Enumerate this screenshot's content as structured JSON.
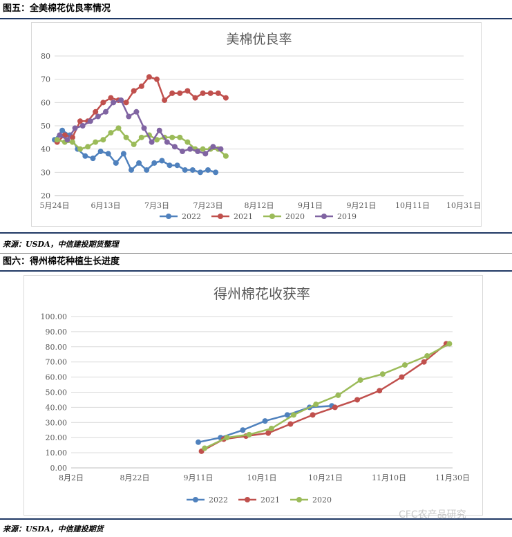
{
  "figure5": {
    "label": "图五：全美棉花优良率情况",
    "source": "来源：USDA，中信建投期货整理"
  },
  "figure6": {
    "label": "图六：得州棉花种植生长进度",
    "source": "来源：USDA，中信建投期货"
  },
  "watermark": "CFC农产品研究",
  "chart_data": [
    {
      "type": "line",
      "title": "美棉优良率",
      "xlabel": "",
      "ylabel": "",
      "x_tick_labels": [
        "5月24日",
        "6月13日",
        "7月3日",
        "7月23日",
        "8月12日",
        "9月1日",
        "9月21日",
        "10月11日",
        "10月31日"
      ],
      "ylim": [
        20,
        80
      ],
      "y_ticks": [
        20,
        30,
        40,
        50,
        60,
        70,
        80
      ],
      "grid": true,
      "legend_position": "bottom",
      "series": [
        {
          "name": "2022",
          "color": "#4f81bd",
          "points": [
            [
              0,
              44
            ],
            [
              3,
              48
            ],
            [
              6,
              46
            ],
            [
              9,
              40
            ],
            [
              12,
              37
            ],
            [
              15,
              36
            ],
            [
              18,
              39
            ],
            [
              21,
              38
            ],
            [
              24,
              34
            ],
            [
              27,
              38
            ],
            [
              30,
              31
            ],
            [
              33,
              34
            ],
            [
              36,
              31
            ],
            [
              39,
              34
            ],
            [
              42,
              35
            ],
            [
              45,
              33
            ],
            [
              48,
              33
            ],
            [
              51,
              31
            ],
            [
              54,
              31
            ],
            [
              57,
              30
            ],
            [
              60,
              31
            ],
            [
              63,
              30
            ]
          ]
        },
        {
          "name": "2021",
          "color": "#c0504d",
          "points": [
            [
              1,
              43
            ],
            [
              4,
              46
            ],
            [
              7,
              45
            ],
            [
              10,
              52
            ],
            [
              13,
              52
            ],
            [
              16,
              56
            ],
            [
              19,
              60
            ],
            [
              22,
              62
            ],
            [
              25,
              61
            ],
            [
              28,
              60
            ],
            [
              31,
              65
            ],
            [
              34,
              67
            ],
            [
              37,
              71
            ],
            [
              40,
              70
            ],
            [
              43,
              61
            ],
            [
              46,
              64
            ],
            [
              49,
              64
            ],
            [
              52,
              65
            ],
            [
              55,
              62
            ],
            [
              58,
              64
            ],
            [
              61,
              64
            ],
            [
              64,
              64
            ],
            [
              67,
              62
            ]
          ]
        },
        {
          "name": "2020",
          "color": "#9bbb59",
          "points": [
            [
              1,
              44
            ],
            [
              4,
              43
            ],
            [
              7,
              43
            ],
            [
              10,
              40
            ],
            [
              13,
              41
            ],
            [
              16,
              43
            ],
            [
              19,
              44
            ],
            [
              22,
              47
            ],
            [
              25,
              49
            ],
            [
              28,
              45
            ],
            [
              31,
              42
            ],
            [
              34,
              45
            ],
            [
              37,
              46
            ],
            [
              40,
              44
            ],
            [
              43,
              45
            ],
            [
              46,
              45
            ],
            [
              49,
              45
            ],
            [
              52,
              43
            ],
            [
              55,
              40
            ],
            [
              58,
              40
            ],
            [
              61,
              40
            ],
            [
              64,
              40
            ],
            [
              67,
              37
            ]
          ]
        },
        {
          "name": "2019",
          "color": "#8064a2",
          "points": [
            [
              2,
              46
            ],
            [
              5,
              44
            ],
            [
              8,
              49
            ],
            [
              11,
              50
            ],
            [
              14,
              52
            ],
            [
              17,
              54
            ],
            [
              20,
              56
            ],
            [
              23,
              60
            ],
            [
              26,
              61
            ],
            [
              29,
              54
            ],
            [
              32,
              56
            ],
            [
              35,
              49
            ],
            [
              38,
              43
            ],
            [
              41,
              48
            ],
            [
              44,
              43
            ],
            [
              47,
              41
            ],
            [
              50,
              39
            ],
            [
              53,
              40
            ],
            [
              56,
              39
            ],
            [
              59,
              38
            ],
            [
              62,
              41
            ],
            [
              65,
              40
            ]
          ]
        }
      ]
    },
    {
      "type": "line",
      "title": "得州棉花收获率",
      "xlabel": "",
      "ylabel": "",
      "x_tick_labels": [
        "8月2日",
        "8月22日",
        "9月11日",
        "10月1日",
        "10月21日",
        "11月10日",
        "11月30日"
      ],
      "ylim": [
        0,
        100
      ],
      "y_ticks": [
        "0.00",
        "10.00",
        "20.00",
        "30.00",
        "40.00",
        "50.00",
        "60.00",
        "70.00",
        "80.00",
        "90.00",
        "100.00"
      ],
      "grid": true,
      "legend_position": "bottom",
      "series": [
        {
          "name": "2022",
          "color": "#4f81bd",
          "points": [
            [
              40,
              17
            ],
            [
              47,
              20
            ],
            [
              54,
              25
            ],
            [
              61,
              31
            ],
            [
              68,
              35
            ],
            [
              75,
              40
            ],
            [
              82,
              41
            ]
          ]
        },
        {
          "name": "2021",
          "color": "#c0504d",
          "points": [
            [
              41,
              11
            ],
            [
              48,
              19
            ],
            [
              55,
              21
            ],
            [
              62,
              23
            ],
            [
              69,
              29
            ],
            [
              76,
              35
            ],
            [
              83,
              40
            ],
            [
              90,
              45
            ],
            [
              97,
              51
            ],
            [
              104,
              60
            ],
            [
              111,
              70
            ],
            [
              118,
              82
            ]
          ]
        },
        {
          "name": "2020",
          "color": "#9bbb59",
          "points": [
            [
              42,
              13
            ],
            [
              49,
              20
            ],
            [
              56,
              22
            ],
            [
              63,
              26
            ],
            [
              70,
              35
            ],
            [
              77,
              42
            ],
            [
              84,
              48
            ],
            [
              91,
              58
            ],
            [
              98,
              62
            ],
            [
              105,
              68
            ],
            [
              112,
              74
            ],
            [
              119,
              82
            ]
          ]
        }
      ]
    }
  ]
}
